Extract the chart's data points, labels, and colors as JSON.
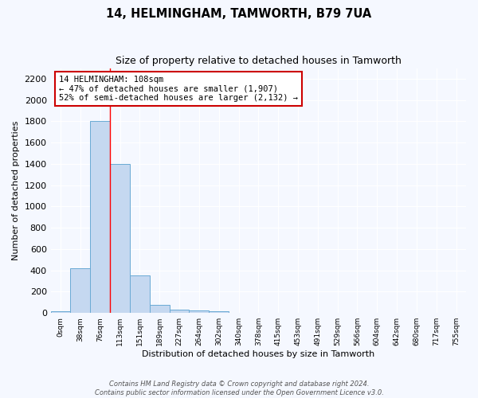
{
  "title": "14, HELMINGHAM, TAMWORTH, B79 7UA",
  "subtitle": "Size of property relative to detached houses in Tamworth",
  "xlabel": "Distribution of detached houses by size in Tamworth",
  "ylabel": "Number of detached properties",
  "bar_categories": [
    "0sqm",
    "38sqm",
    "76sqm",
    "113sqm",
    "151sqm",
    "189sqm",
    "227sqm",
    "264sqm",
    "302sqm",
    "340sqm",
    "378sqm",
    "415sqm",
    "453sqm",
    "491sqm",
    "529sqm",
    "566sqm",
    "604sqm",
    "642sqm",
    "680sqm",
    "717sqm",
    "755sqm"
  ],
  "bar_values": [
    20,
    420,
    1800,
    1400,
    350,
    80,
    30,
    25,
    20,
    0,
    0,
    0,
    0,
    0,
    0,
    0,
    0,
    0,
    0,
    0,
    0
  ],
  "bar_color": "#c5d8f0",
  "bar_edge_color": "#6aaad4",
  "ylim": [
    0,
    2300
  ],
  "yticks": [
    0,
    200,
    400,
    600,
    800,
    1000,
    1200,
    1400,
    1600,
    1800,
    2000,
    2200
  ],
  "red_line_x": 2.5,
  "annotation_text": "14 HELMINGHAM: 108sqm\n← 47% of detached houses are smaller (1,907)\n52% of semi-detached houses are larger (2,132) →",
  "annotation_box_color": "#ffffff",
  "annotation_border_color": "#cc0000",
  "footnote": "Contains HM Land Registry data © Crown copyright and database right 2024.\nContains public sector information licensed under the Open Government Licence v3.0.",
  "background_color": "#f5f8ff",
  "grid_color": "#ffffff"
}
